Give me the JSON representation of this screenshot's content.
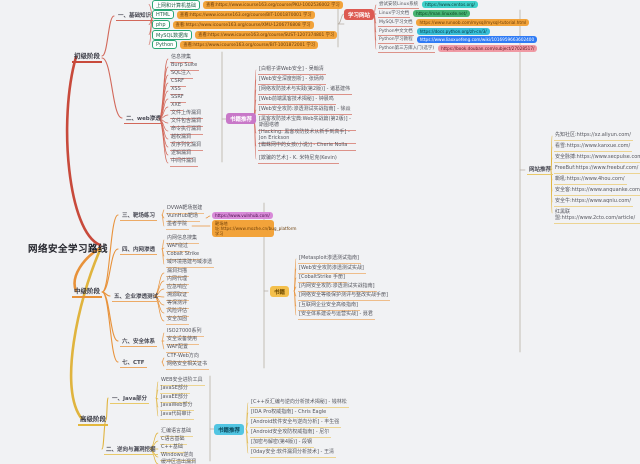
{
  "root_title": "网络安全学习路线",
  "stages": {
    "beginner": "初级阶段",
    "intermediate": "中级阶段",
    "advanced": "高级阶段"
  },
  "beginner": {
    "basics_label": "一、基础知识",
    "basics_rows": [
      {
        "topic": "上网和计算机基础",
        "link": "查看:https://www.icourse163.org/course/PKU-1002536002 学习"
      },
      {
        "topic": "HTML",
        "link": "查看:https://www.icourse163.org/course/BIT-1001870001 学习"
      },
      {
        "topic": "php",
        "link": "查看:https://www.icourse163.org/course/XMU-1206776808 学习"
      },
      {
        "topic": "MySQL数据库",
        "link": "查看:https://www.icourse163.org/course/SUST-1207374801 学习"
      },
      {
        "topic": "Python",
        "link": "查看:https://www.icourse163.org/course/BIT-1001872001 学习"
      }
    ],
    "web_label": "二、web渗透",
    "web_items": [
      "信息搜集",
      "Burp Suite",
      "SQL注入",
      "CSRF",
      "XSS",
      "SSRF",
      "XXE",
      "文件上传漏洞",
      "文件包含漏洞",
      "命令执行漏洞",
      "越权漏洞",
      "反序列化漏洞",
      "逻辑漏洞",
      "中间件漏洞"
    ],
    "books_label": "书籍推荐",
    "books": [
      "[白帽子讲Web安全] - 吴翰清",
      "[Web安全深度剖析] - 张炳帅",
      "[网络攻防技术与实践(第2版)] - 诸葛建伟",
      "[Web前端黑客技术揭秘] - 钟晨鸣",
      "[Web安全攻防:渗透测试实战指南] - 徐焱",
      "[黑客攻防技术宝典:Web实战篇(第2版)] - 斯图塔德",
      "[Hacking: 黑客攻防技术从新手到高手] - Jon Erickson",
      "[蜘蛛网中的女孩(小说)] - Cherie Nolla",
      "[欺骗的艺术] - K. 米特尼克(Kevin)"
    ],
    "sites_label": "学习网站",
    "site_rows": [
      {
        "topic": "尝试安装Linux系统",
        "url": "https://www.centos.org/",
        "color": "cyan"
      },
      {
        "topic": "Linux学习文档",
        "url": "https://man.linuxde.net/",
        "color": "green"
      },
      {
        "topic": "MySQL学习文档",
        "url": "https://www.runoob.com/mysql/mysql-tutorial.html",
        "color": "orange"
      },
      {
        "topic": "Python中文文档",
        "url": "https://docs.python.org/zh-cn/3/",
        "color": "teal"
      },
      {
        "topic": "Python学习教程",
        "url": "https://www.liaoxuefeng.com/wiki/1016959663602400",
        "color": "blue"
      },
      {
        "topic": "Python第三方库入门(选学)",
        "url": "https://book.douban.com/subject/27028517/",
        "color": "pink"
      }
    ]
  },
  "intermediate": {
    "children": [
      {
        "label": "三、靶场练习",
        "items": [
          "DVWA靶场搭建",
          "VulnHub靶场",
          "墨者学院"
        ]
      },
      {
        "label": "四、内网渗透",
        "items": [
          "内网信息搜集",
          "WAF绕过",
          "Cobalt Strike",
          "域环境搭建与域渗透"
        ]
      },
      {
        "label": "五、企业渗透测试",
        "items": [
          "漏洞扫描",
          "内网代理",
          "应急响应",
          "溯源取证",
          "等保测评",
          "风险评估",
          "安全加固"
        ]
      },
      {
        "label": "六、安全体系",
        "items": [
          "ISO27000系列",
          "安全设备使用",
          "WAF配置"
        ]
      },
      {
        "label": "七、CTF",
        "items": [
          "CTF-Web方向",
          "网络安全相关证书"
        ]
      }
    ],
    "vulnhub_link": "https://www.vulnhub.com/",
    "mozhe_link": "靶场地址:https://www.mozhe.cn/bug_platform 学习",
    "books_label": "书籍",
    "books": [
      "[Metasploit渗透测试指南]",
      "[Web安全攻防渗透测试实战]",
      "[CobaltStrike 手册]",
      "[内网安全攻防:渗透测试实战指南]",
      "[网络安全等级保护测评与整改实战手册]",
      "[互联网企业安全高级指南]",
      "[安全体系建设与运营实战] - 聂君"
    ]
  },
  "advanced": {
    "children": [
      {
        "label": "一、Java部分",
        "items": [
          "WEB安全进阶工具",
          "JavaSE部分",
          "JavaEE部分",
          "JavaWeb部分",
          "Java代码审计"
        ]
      },
      {
        "label": "二、逆向与漏洞挖掘",
        "items": [
          "汇编语言基础",
          "C语言基础",
          "C++基础",
          "Windows逆向",
          "缓冲区溢出漏洞"
        ]
      }
    ],
    "books_label": "书籍推荐",
    "books": [
      "[C++反汇编与逆向分析技术揭秘] - 钱林松",
      "[IDA Pro权威指南] - Chris Eagle",
      "[Android软件安全与逆向分析] - 丰生强",
      "[Android安全攻防权威指南] - 尼尔",
      "[加密与解密(第4版)] - 段钢",
      "[0day安全:软件漏洞分析技术] - 王清"
    ]
  },
  "sites": {
    "label": "网站推荐",
    "items": [
      "先知社区:https://xz.aliyun.com/",
      "看雪:https://www.kanxue.com/",
      "安全脉搏:https://www.secpulse.com/",
      "FreeBuf:https://www.freebuf.com/",
      "嘶吼:https://www.4hou.com/",
      "安全客:https://www.anquanke.com/",
      "安全牛:https://www.aqniu.com/",
      "红黑联盟:https://www.2cto.com/article/"
    ]
  }
}
